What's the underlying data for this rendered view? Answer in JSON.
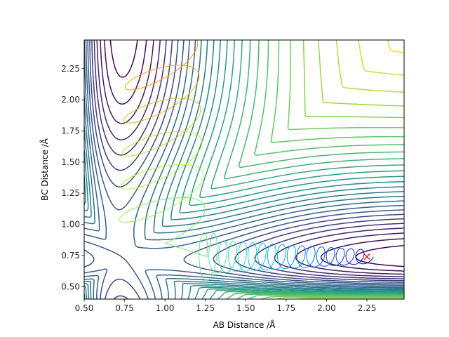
{
  "chart_data": {
    "type": "contour",
    "title": "",
    "xlabel": "AB Distance /Å",
    "ylabel": "BC Distance /Å",
    "xlim": [
      0.5,
      2.48
    ],
    "ylim": [
      0.4,
      2.48
    ],
    "xticks": [
      "0.50",
      "0.75",
      "1.00",
      "1.25",
      "1.50",
      "1.75",
      "2.00",
      "2.25"
    ],
    "yticks": [
      "0.50",
      "0.75",
      "1.00",
      "1.25",
      "1.50",
      "1.75",
      "2.00",
      "2.25"
    ],
    "grid": false,
    "colormap": [
      "#440154",
      "#3b528b",
      "#21918c",
      "#5ec962",
      "#fde725"
    ],
    "surface": {
      "well_x": 0.74,
      "well_y": 0.74,
      "saddle_x": 0.93,
      "saddle_y": 0.93,
      "barrier": 0.4,
      "contour_levels": 28
    },
    "trajectory": {
      "start": [
        0.76,
        2.41
      ],
      "end": [
        2.25,
        0.74
      ],
      "colors": [
        "#ff8c00",
        "#adff2f",
        "#00bfff",
        "#0000cd"
      ]
    },
    "end_marker": {
      "x": 2.25,
      "y": 0.74,
      "symbol": "×",
      "color": "#ff0000"
    }
  }
}
